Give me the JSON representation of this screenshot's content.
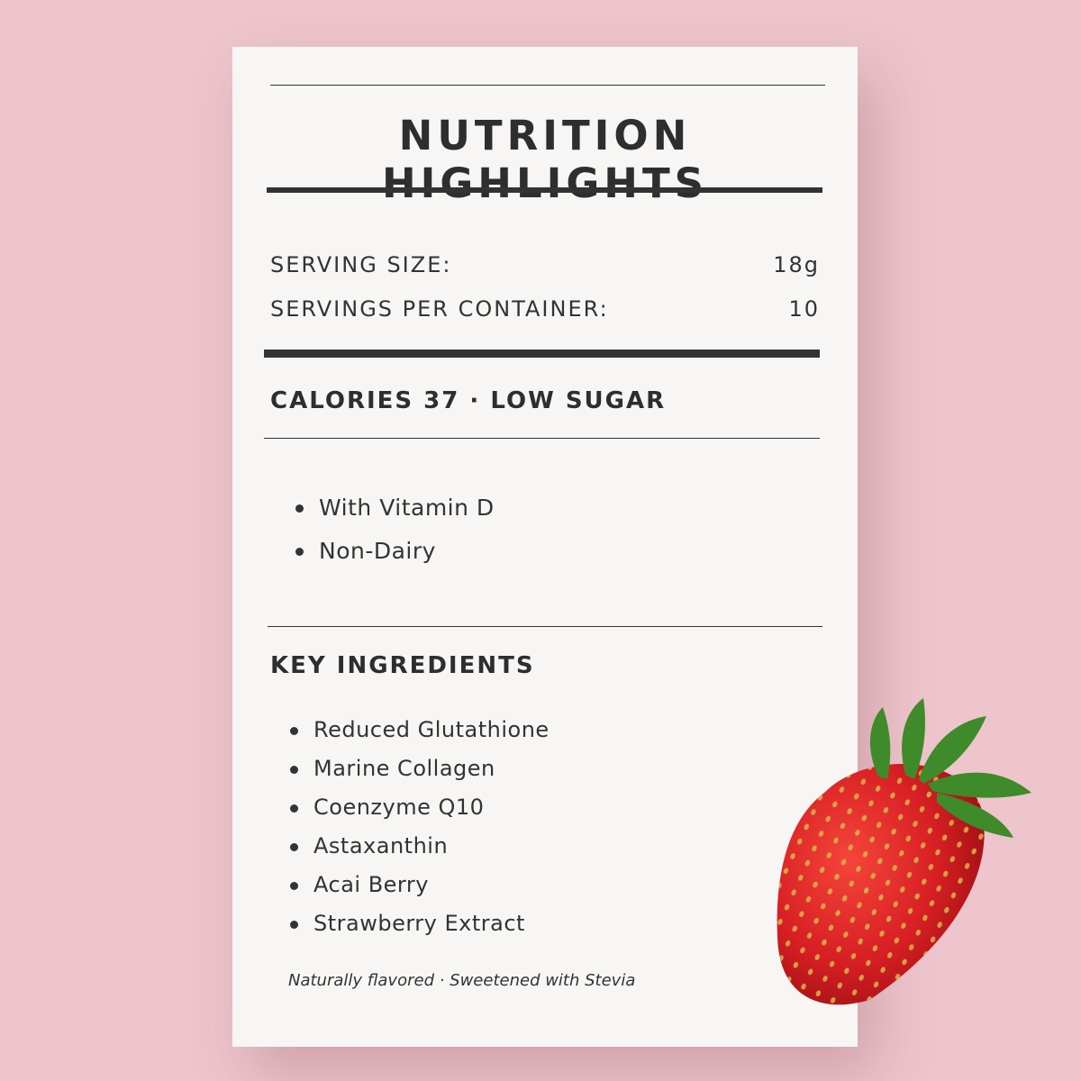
{
  "card": {
    "title": "NUTRITION HIGHLIGHTS",
    "serving_size": {
      "label": "SERVING SIZE:",
      "value": "18g"
    },
    "servings_per_container": {
      "label": "SERVINGS PER CONTAINER:",
      "value": "10"
    },
    "calories_line": "CALORIES 37 · LOW SUGAR",
    "claims": [
      "With Vitamin D",
      "Non-Dairy"
    ],
    "key_ingredients_heading": "KEY INGREDIENTS",
    "ingredients": [
      "Reduced Glutathione",
      "Marine Collagen",
      "Coenzyme Q10",
      "Astaxanthin",
      "Acai Berry",
      "Strawberry Extract"
    ],
    "footnote": "Naturally flavored · Sweetened with Stevia"
  },
  "colors": {
    "background": "#eec5cc",
    "card": "#f7f6f4",
    "text": "#333333",
    "strawberry": "#e0282a"
  },
  "decoration": "strawberry-image"
}
